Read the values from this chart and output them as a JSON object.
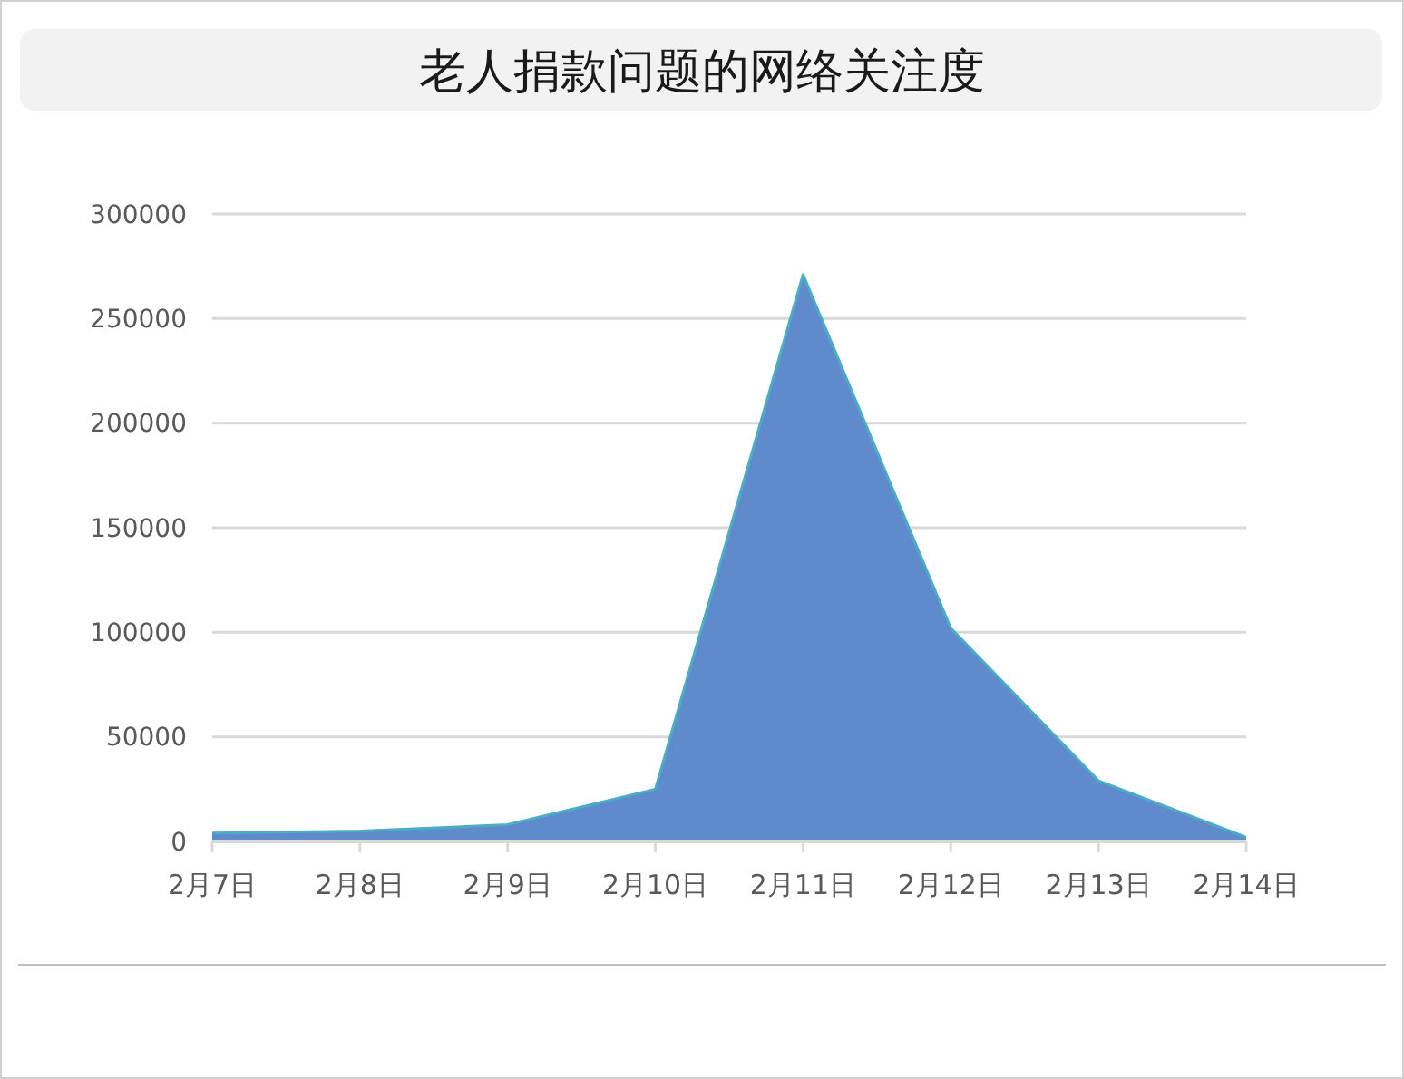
{
  "chart_data": {
    "type": "area",
    "title": "老人捐款问题的网络关注度",
    "categories": [
      "2月7日",
      "2月8日",
      "2月9日",
      "2月10日",
      "2月11日",
      "2月12日",
      "2月13日",
      "2月14日"
    ],
    "series": [
      {
        "color": "#5f8bcd",
        "values": [
          4000,
          5000,
          8000,
          25000,
          271000,
          102000,
          29000,
          2000
        ]
      }
    ],
    "ylim": [
      0,
      300000
    ],
    "yticks": [
      0,
      50000,
      100000,
      150000,
      200000,
      250000,
      300000
    ],
    "grid": "y"
  }
}
